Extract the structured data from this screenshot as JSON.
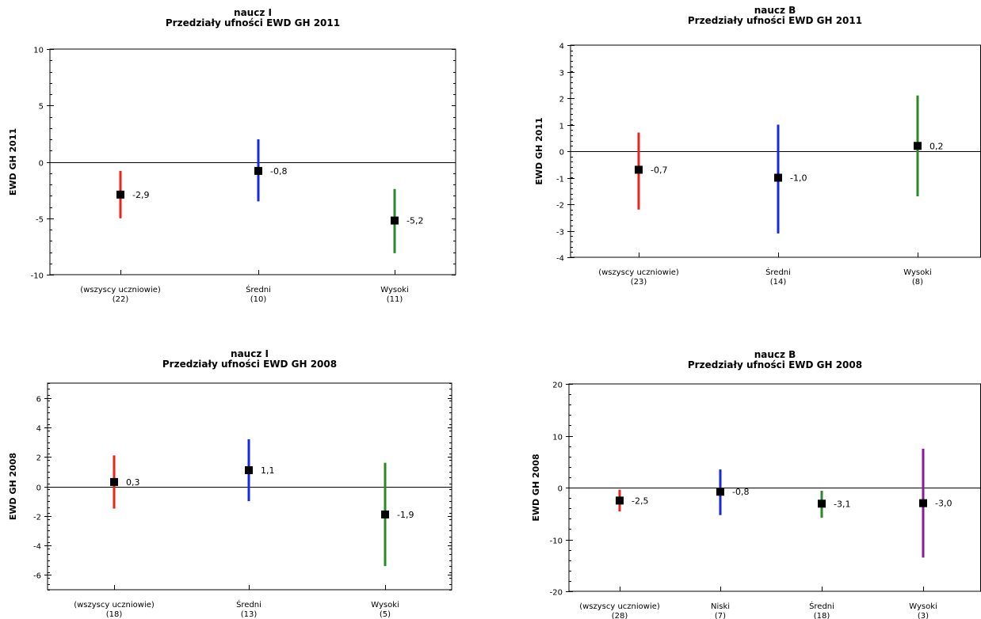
{
  "chart_data": [
    {
      "type": "errorbar",
      "title": "naucz I",
      "subtitle": "Przedziały ufności EWD GH 2011",
      "ylabel": "EWD GH 2011",
      "ylim": [
        -10,
        10
      ],
      "yticks": [
        -10,
        -5,
        0,
        5,
        10
      ],
      "categories": [
        "(wszyscy uczniowie)",
        "Średni",
        "Wysoki"
      ],
      "counts": [
        "(22)",
        "(10)",
        "(11)"
      ],
      "values": [
        -2.9,
        -0.8,
        -5.2
      ],
      "value_labels": [
        "-2,9",
        "-0,8",
        "-5,2"
      ],
      "lower": [
        -5.0,
        -3.5,
        -8.1
      ],
      "upper": [
        -0.8,
        2.0,
        -2.4
      ],
      "colors": [
        "#e8241c",
        "#1628e8",
        "#2a8a2a"
      ]
    },
    {
      "type": "errorbar",
      "title": "naucz B",
      "subtitle": "Przedziały ufności EWD GH 2011",
      "ylabel": "EWD GH 2011",
      "ylim": [
        -4,
        4
      ],
      "yticks": [
        -4,
        -3,
        -2,
        -1,
        0,
        1,
        2,
        3,
        4
      ],
      "categories": [
        "(wszyscy uczniowie)",
        "Średni",
        "Wysoki"
      ],
      "counts": [
        "(23)",
        "(14)",
        "(8)"
      ],
      "values": [
        -0.7,
        -1.0,
        0.2
      ],
      "value_labels": [
        "-0,7",
        "-1,0",
        "0,2"
      ],
      "lower": [
        -2.2,
        -3.1,
        -1.7
      ],
      "upper": [
        0.7,
        1.0,
        2.1
      ],
      "colors": [
        "#e8241c",
        "#1628e8",
        "#2a8a2a"
      ]
    },
    {
      "type": "errorbar",
      "title": "naucz I",
      "subtitle": "Przedziały ufności EWD GH 2008",
      "ylabel": "EWD GH 2008",
      "ylim": [
        -7,
        7
      ],
      "yticks": [
        -6,
        -4,
        -2,
        0,
        2,
        4,
        6
      ],
      "categories": [
        "(wszyscy uczniowie)",
        "Średni",
        "Wysoki"
      ],
      "counts": [
        "(18)",
        "(13)",
        "(5)"
      ],
      "values": [
        0.3,
        1.1,
        -1.9
      ],
      "value_labels": [
        "0,3",
        "1,1",
        "-1,9"
      ],
      "lower": [
        -1.5,
        -1.0,
        -5.4
      ],
      "upper": [
        2.1,
        3.2,
        1.6
      ],
      "colors": [
        "#e8241c",
        "#1628e8",
        "#2a8a2a"
      ]
    },
    {
      "type": "errorbar",
      "title": "naucz B",
      "subtitle": "Przedziały ufności EWD GH 2008",
      "ylabel": "EWD GH 2008",
      "ylim": [
        -20,
        20
      ],
      "yticks": [
        -20,
        -10,
        0,
        10,
        20
      ],
      "categories": [
        "(wszyscy uczniowie)",
        "Niski",
        "Średni",
        "Wysoki"
      ],
      "counts": [
        "(28)",
        "(7)",
        "(18)",
        "(3)"
      ],
      "values": [
        -2.5,
        -0.8,
        -3.1,
        -3.0
      ],
      "value_labels": [
        "-2,5",
        "-0,8",
        "-3,1",
        "-3,0"
      ],
      "lower": [
        -4.6,
        -5.3,
        -5.8,
        -13.5
      ],
      "upper": [
        -0.4,
        3.5,
        -0.6,
        7.5
      ],
      "colors": [
        "#e8241c",
        "#1628e8",
        "#2a8a2a",
        "#8a1a9a"
      ]
    }
  ]
}
